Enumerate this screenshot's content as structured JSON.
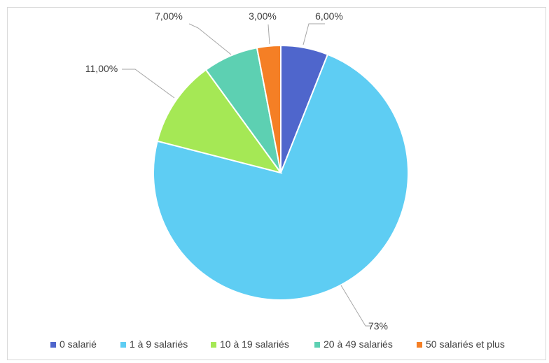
{
  "chart_data": {
    "type": "pie",
    "title": "",
    "categories": [
      "0 salarié",
      "1 à 9 salariés",
      "10 à 19 salariés",
      "20 à 49 salariés",
      "50 salariés et plus"
    ],
    "values": [
      6,
      73,
      11,
      7,
      3
    ],
    "data_labels": [
      "6,00%",
      "73%",
      "11,00%",
      "7,00%",
      "3,00%"
    ],
    "colors": [
      "#4f66cc",
      "#5ecdf3",
      "#a5e855",
      "#5dd0b2",
      "#f57f25"
    ],
    "legend_position": "bottom",
    "start_angle_deg": 0,
    "direction": "clockwise"
  }
}
